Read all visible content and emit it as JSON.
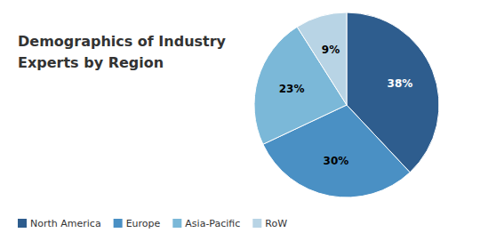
{
  "chart_data": {
    "type": "pie",
    "title": "Demographics of Industry",
    "subtitle": "Experts by Region",
    "categories": [
      "North America",
      "Europe",
      "Asia-Pacific",
      "RoW"
    ],
    "values": [
      38,
      30,
      23,
      9
    ],
    "value_labels": [
      "38%",
      "30%",
      "23%",
      "9%"
    ],
    "colors": [
      "#2E5D8E",
      "#4A90C4",
      "#7BB8D8",
      "#B8D4E5"
    ],
    "data_labels": true,
    "legend": "lower left"
  }
}
